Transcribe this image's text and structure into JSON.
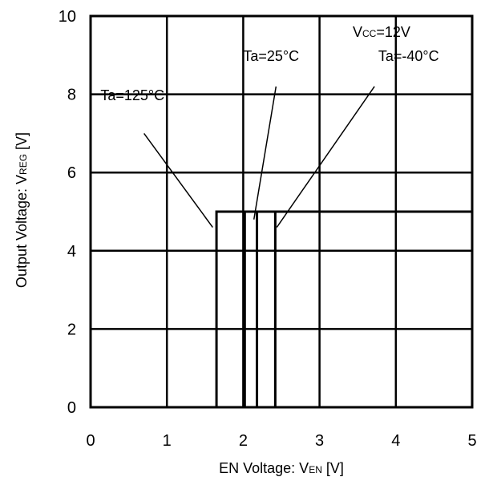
{
  "chart_data": {
    "type": "line",
    "title": "",
    "xlabel": {
      "main": "EN Voltage: V",
      "sub": "EN",
      "unit": " [V]"
    },
    "ylabel": {
      "main": "Output Voltage: V",
      "sub": "REG",
      "unit": " [V]"
    },
    "xlim": [
      0,
      5
    ],
    "ylim": [
      0,
      10
    ],
    "xticks": [
      0,
      1,
      2,
      3,
      4,
      5
    ],
    "yticks": [
      0,
      2,
      4,
      6,
      8,
      10
    ],
    "grid": true,
    "condition": {
      "main": "V",
      "sub": "CC",
      "rest": "=12V"
    },
    "series": [
      {
        "name": "Ta=125°C",
        "color": "#000000",
        "x": [
          0,
          1.65,
          1.65,
          5
        ],
        "y": [
          0,
          0,
          5,
          5
        ]
      },
      {
        "name": "Ta=25°C",
        "color": "#000000",
        "x": [
          0,
          2.18,
          2.18,
          5
        ],
        "y": [
          0,
          0,
          5,
          5
        ]
      },
      {
        "name": "Ta=-40°C",
        "color": "#000000",
        "x": [
          0,
          2.42,
          2.42,
          5
        ],
        "y": [
          0,
          0,
          5,
          5
        ]
      },
      {
        "name": "",
        "color": "#000000",
        "x": [
          0,
          2.02,
          2.02,
          5
        ],
        "y": [
          0,
          0,
          5,
          5
        ]
      }
    ],
    "annotations": [
      {
        "text": "Ta=125°C",
        "label_at": [
          0.13,
          7.85
        ],
        "line_from": [
          0.7,
          7.0
        ],
        "line_to": [
          1.6,
          4.6
        ]
      },
      {
        "text": "Ta=25°C",
        "label_at": [
          2.0,
          8.85
        ],
        "line_from": [
          2.43,
          8.2
        ],
        "line_to": [
          2.14,
          4.8
        ]
      },
      {
        "text": "Ta=-40°C",
        "label_at": [
          3.77,
          8.85
        ],
        "line_from": [
          3.72,
          8.2
        ],
        "line_to": [
          2.44,
          4.6
        ]
      }
    ]
  }
}
